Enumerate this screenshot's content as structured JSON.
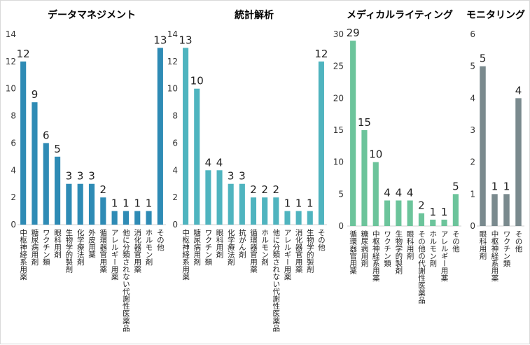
{
  "chart_data": [
    {
      "type": "bar",
      "title": "データマネジメント",
      "color": "#2e8bb5",
      "ylim": [
        0,
        14
      ],
      "yticks": [
        0,
        2,
        4,
        6,
        8,
        10,
        12,
        14
      ],
      "categories": [
        "中枢神経系用薬",
        "糖尿病用剤",
        "ワクチン類",
        "眼科用剤",
        "生物学的製剤",
        "化学療法剤",
        "外皮用薬",
        "循環器官用薬",
        "アレルギー用薬",
        "他に分類されない代謝性医薬品",
        "消化器官用薬",
        "ホルモン剤",
        "その他"
      ],
      "values": [
        12,
        9,
        6,
        5,
        3,
        3,
        3,
        2,
        1,
        1,
        1,
        1,
        13
      ],
      "grid": false
    },
    {
      "type": "bar",
      "title": "統計解析",
      "color": "#4fb4bf",
      "ylim": [
        0,
        14
      ],
      "yticks": [
        0,
        2,
        4,
        6,
        8,
        10,
        12,
        14
      ],
      "categories": [
        "中枢神経系用薬",
        "糖尿病用剤",
        "ワクチン類",
        "眼科用剤",
        "化学療法剤",
        "抗がん剤",
        "循環器官用薬",
        "ホルモン剤",
        "他に分類されない代謝性医薬品",
        "アレルギー用薬",
        "消化器官用薬",
        "生物学的製剤",
        "その他"
      ],
      "values": [
        13,
        10,
        4,
        4,
        3,
        3,
        2,
        2,
        2,
        1,
        1,
        1,
        12
      ],
      "grid": false
    },
    {
      "type": "bar",
      "title": "メディカルライティング",
      "color": "#6cc49b",
      "ylim": [
        0,
        30
      ],
      "yticks": [
        0,
        5,
        10,
        15,
        20,
        25,
        30
      ],
      "categories": [
        "循環器官用薬",
        "糖尿病用剤",
        "中枢神経系用薬",
        "ワクチン類",
        "生物学的製剤",
        "眼科用剤",
        "その他の代謝性医薬品",
        "ホルモン剤",
        "アレルギー用薬",
        "その他"
      ],
      "values": [
        29,
        15,
        10,
        4,
        4,
        4,
        2,
        1,
        1,
        5
      ],
      "grid": false
    },
    {
      "type": "bar",
      "title": "モニタリング",
      "color": "#7a8a8e",
      "ylim": [
        0,
        6
      ],
      "yticks": [
        0,
        1,
        2,
        3,
        4,
        5,
        6
      ],
      "categories": [
        "眼科用剤",
        "中枢神経系用薬",
        "ワクチン類",
        "その他"
      ],
      "values": [
        5,
        1,
        1,
        4
      ],
      "grid": false
    }
  ]
}
